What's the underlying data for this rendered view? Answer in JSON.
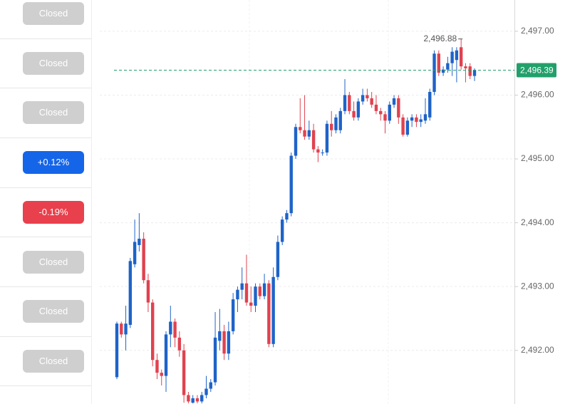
{
  "sidebar": {
    "badges": [
      {
        "text": "Closed",
        "color": "#cfcfcf"
      },
      {
        "text": "Closed",
        "color": "#cfcfcf"
      },
      {
        "text": "Closed",
        "color": "#cfcfcf"
      },
      {
        "text": "+0.12%",
        "color": "#1565e8"
      },
      {
        "text": "-0.19%",
        "color": "#e8404c"
      },
      {
        "text": "Closed",
        "color": "#cfcfcf"
      },
      {
        "text": "Closed",
        "color": "#cfcfcf"
      },
      {
        "text": "Closed",
        "color": "#cfcfcf"
      }
    ]
  },
  "chart_data": {
    "type": "candlestick",
    "up_color": "#1e63c8",
    "down_color": "#e0424f",
    "ylim": [
      2491.16,
      2497.49
    ],
    "yticks": [
      {
        "value": 2492,
        "label": "2,492.00"
      },
      {
        "value": 2493,
        "label": "2,493.00"
      },
      {
        "value": 2494,
        "label": "2,494.00"
      },
      {
        "value": 2495,
        "label": "2,495.00"
      },
      {
        "value": 2496,
        "label": "2,496.00"
      },
      {
        "value": 2497,
        "label": "2,497.00"
      }
    ],
    "grid": true,
    "current_price": {
      "value": 2496.39,
      "label": "2,496.39",
      "color": "#22a06b"
    },
    "max_annotation": {
      "value": 2496.88,
      "label": "2,496.88"
    },
    "open": [
      2491.58,
      2492.42,
      2492.25,
      2492.4,
      2493.35,
      2493.65,
      2493.75,
      2493.1,
      2492.75,
      2491.85,
      2491.65,
      2491.6,
      2492.25,
      2492.45,
      2492.2,
      2492.0,
      2491.3,
      2491.18,
      2491.25,
      2491.2,
      2491.3,
      2491.4,
      2491.5,
      2492.15,
      2492.3,
      2491.95,
      2492.3,
      2492.8,
      2492.95,
      2493.05,
      2492.75,
      2492.7,
      2493.0,
      2492.85,
      2493.05,
      2492.1,
      2493.15,
      2493.7,
      2494.05,
      2494.15,
      2495.05,
      2495.5,
      2495.45,
      2495.35,
      2495.45,
      2495.15,
      2495.1,
      2495.1,
      2495.55,
      2495.45,
      2495.45,
      2495.75,
      2496.0,
      2495.75,
      2495.65,
      2495.9,
      2496.0,
      2495.95,
      2495.85,
      2495.75,
      2495.7,
      2495.6,
      2495.85,
      2495.95,
      2495.65,
      2495.38,
      2495.6,
      2495.65,
      2495.58,
      2495.6,
      2495.65,
      2496.05,
      2496.65,
      2496.35,
      2496.4,
      2496.5,
      2496.55,
      2496.75,
      2496.45,
      2496.45,
      2496.3
    ],
    "high": [
      2492.45,
      2492.45,
      2492.7,
      2493.45,
      2494.05,
      2494.15,
      2493.85,
      2493.2,
      2492.8,
      2491.95,
      2491.7,
      2492.3,
      2492.7,
      2492.5,
      2492.3,
      2492.1,
      2491.35,
      2491.3,
      2491.3,
      2491.35,
      2491.6,
      2491.55,
      2492.6,
      2492.65,
      2492.4,
      2492.45,
      2492.9,
      2493.0,
      2493.3,
      2493.5,
      2493.0,
      2493.05,
      2493.05,
      2493.2,
      2493.1,
      2493.3,
      2493.8,
      2494.1,
      2494.2,
      2495.1,
      2495.55,
      2495.95,
      2496.0,
      2495.6,
      2495.55,
      2495.2,
      2495.15,
      2495.6,
      2495.75,
      2495.7,
      2495.8,
      2496.25,
      2496.05,
      2495.9,
      2495.95,
      2496.1,
      2496.1,
      2496.05,
      2496.0,
      2495.8,
      2495.75,
      2495.9,
      2496.0,
      2496.0,
      2495.7,
      2495.65,
      2495.7,
      2495.7,
      2495.7,
      2495.95,
      2496.1,
      2496.7,
      2496.7,
      2496.45,
      2496.6,
      2496.75,
      2496.75,
      2496.88,
      2496.5,
      2496.5,
      2496.42
    ],
    "low": [
      2491.55,
      2492.2,
      2492.0,
      2492.35,
      2493.3,
      2493.55,
      2493.05,
      2492.6,
      2491.75,
      2491.55,
      2491.45,
      2491.35,
      2492.05,
      2492.05,
      2491.9,
      2491.18,
      2491.17,
      2491.17,
      2491.17,
      2491.17,
      2491.25,
      2491.35,
      2491.45,
      2492.0,
      2491.85,
      2491.85,
      2492.25,
      2492.6,
      2492.8,
      2492.7,
      2492.6,
      2492.6,
      2492.8,
      2492.8,
      2492.05,
      2492.05,
      2493.1,
      2493.65,
      2494.0,
      2494.1,
      2495.0,
      2495.4,
      2495.3,
      2495.3,
      2495.1,
      2494.95,
      2495.05,
      2495.05,
      2495.35,
      2495.4,
      2495.4,
      2495.7,
      2495.7,
      2495.6,
      2495.6,
      2495.85,
      2495.9,
      2495.8,
      2495.7,
      2495.6,
      2495.4,
      2495.55,
      2495.8,
      2495.55,
      2495.35,
      2495.35,
      2495.5,
      2495.5,
      2495.5,
      2495.55,
      2495.6,
      2496.0,
      2496.3,
      2496.3,
      2496.35,
      2496.3,
      2496.2,
      2496.4,
      2496.2,
      2496.25,
      2496.22
    ],
    "close": [
      2492.42,
      2492.25,
      2492.42,
      2493.4,
      2493.7,
      2493.75,
      2493.1,
      2492.75,
      2491.85,
      2491.65,
      2491.6,
      2492.25,
      2492.45,
      2492.2,
      2492.0,
      2491.3,
      2491.2,
      2491.25,
      2491.2,
      2491.3,
      2491.4,
      2491.5,
      2492.2,
      2492.3,
      2491.95,
      2492.3,
      2492.8,
      2492.95,
      2493.05,
      2492.75,
      2492.7,
      2493.0,
      2492.85,
      2493.05,
      2492.1,
      2493.15,
      2493.7,
      2494.05,
      2494.15,
      2495.05,
      2495.5,
      2495.45,
      2495.35,
      2495.45,
      2495.15,
      2495.1,
      2495.1,
      2495.55,
      2495.45,
      2495.65,
      2495.75,
      2496.0,
      2495.75,
      2495.65,
      2495.9,
      2496.0,
      2495.95,
      2495.85,
      2495.75,
      2495.7,
      2495.6,
      2495.85,
      2495.95,
      2495.65,
      2495.38,
      2495.6,
      2495.65,
      2495.58,
      2495.62,
      2495.7,
      2496.05,
      2496.65,
      2496.35,
      2496.4,
      2496.5,
      2496.68,
      2496.7,
      2496.45,
      2496.42,
      2496.3,
      2496.39
    ]
  }
}
